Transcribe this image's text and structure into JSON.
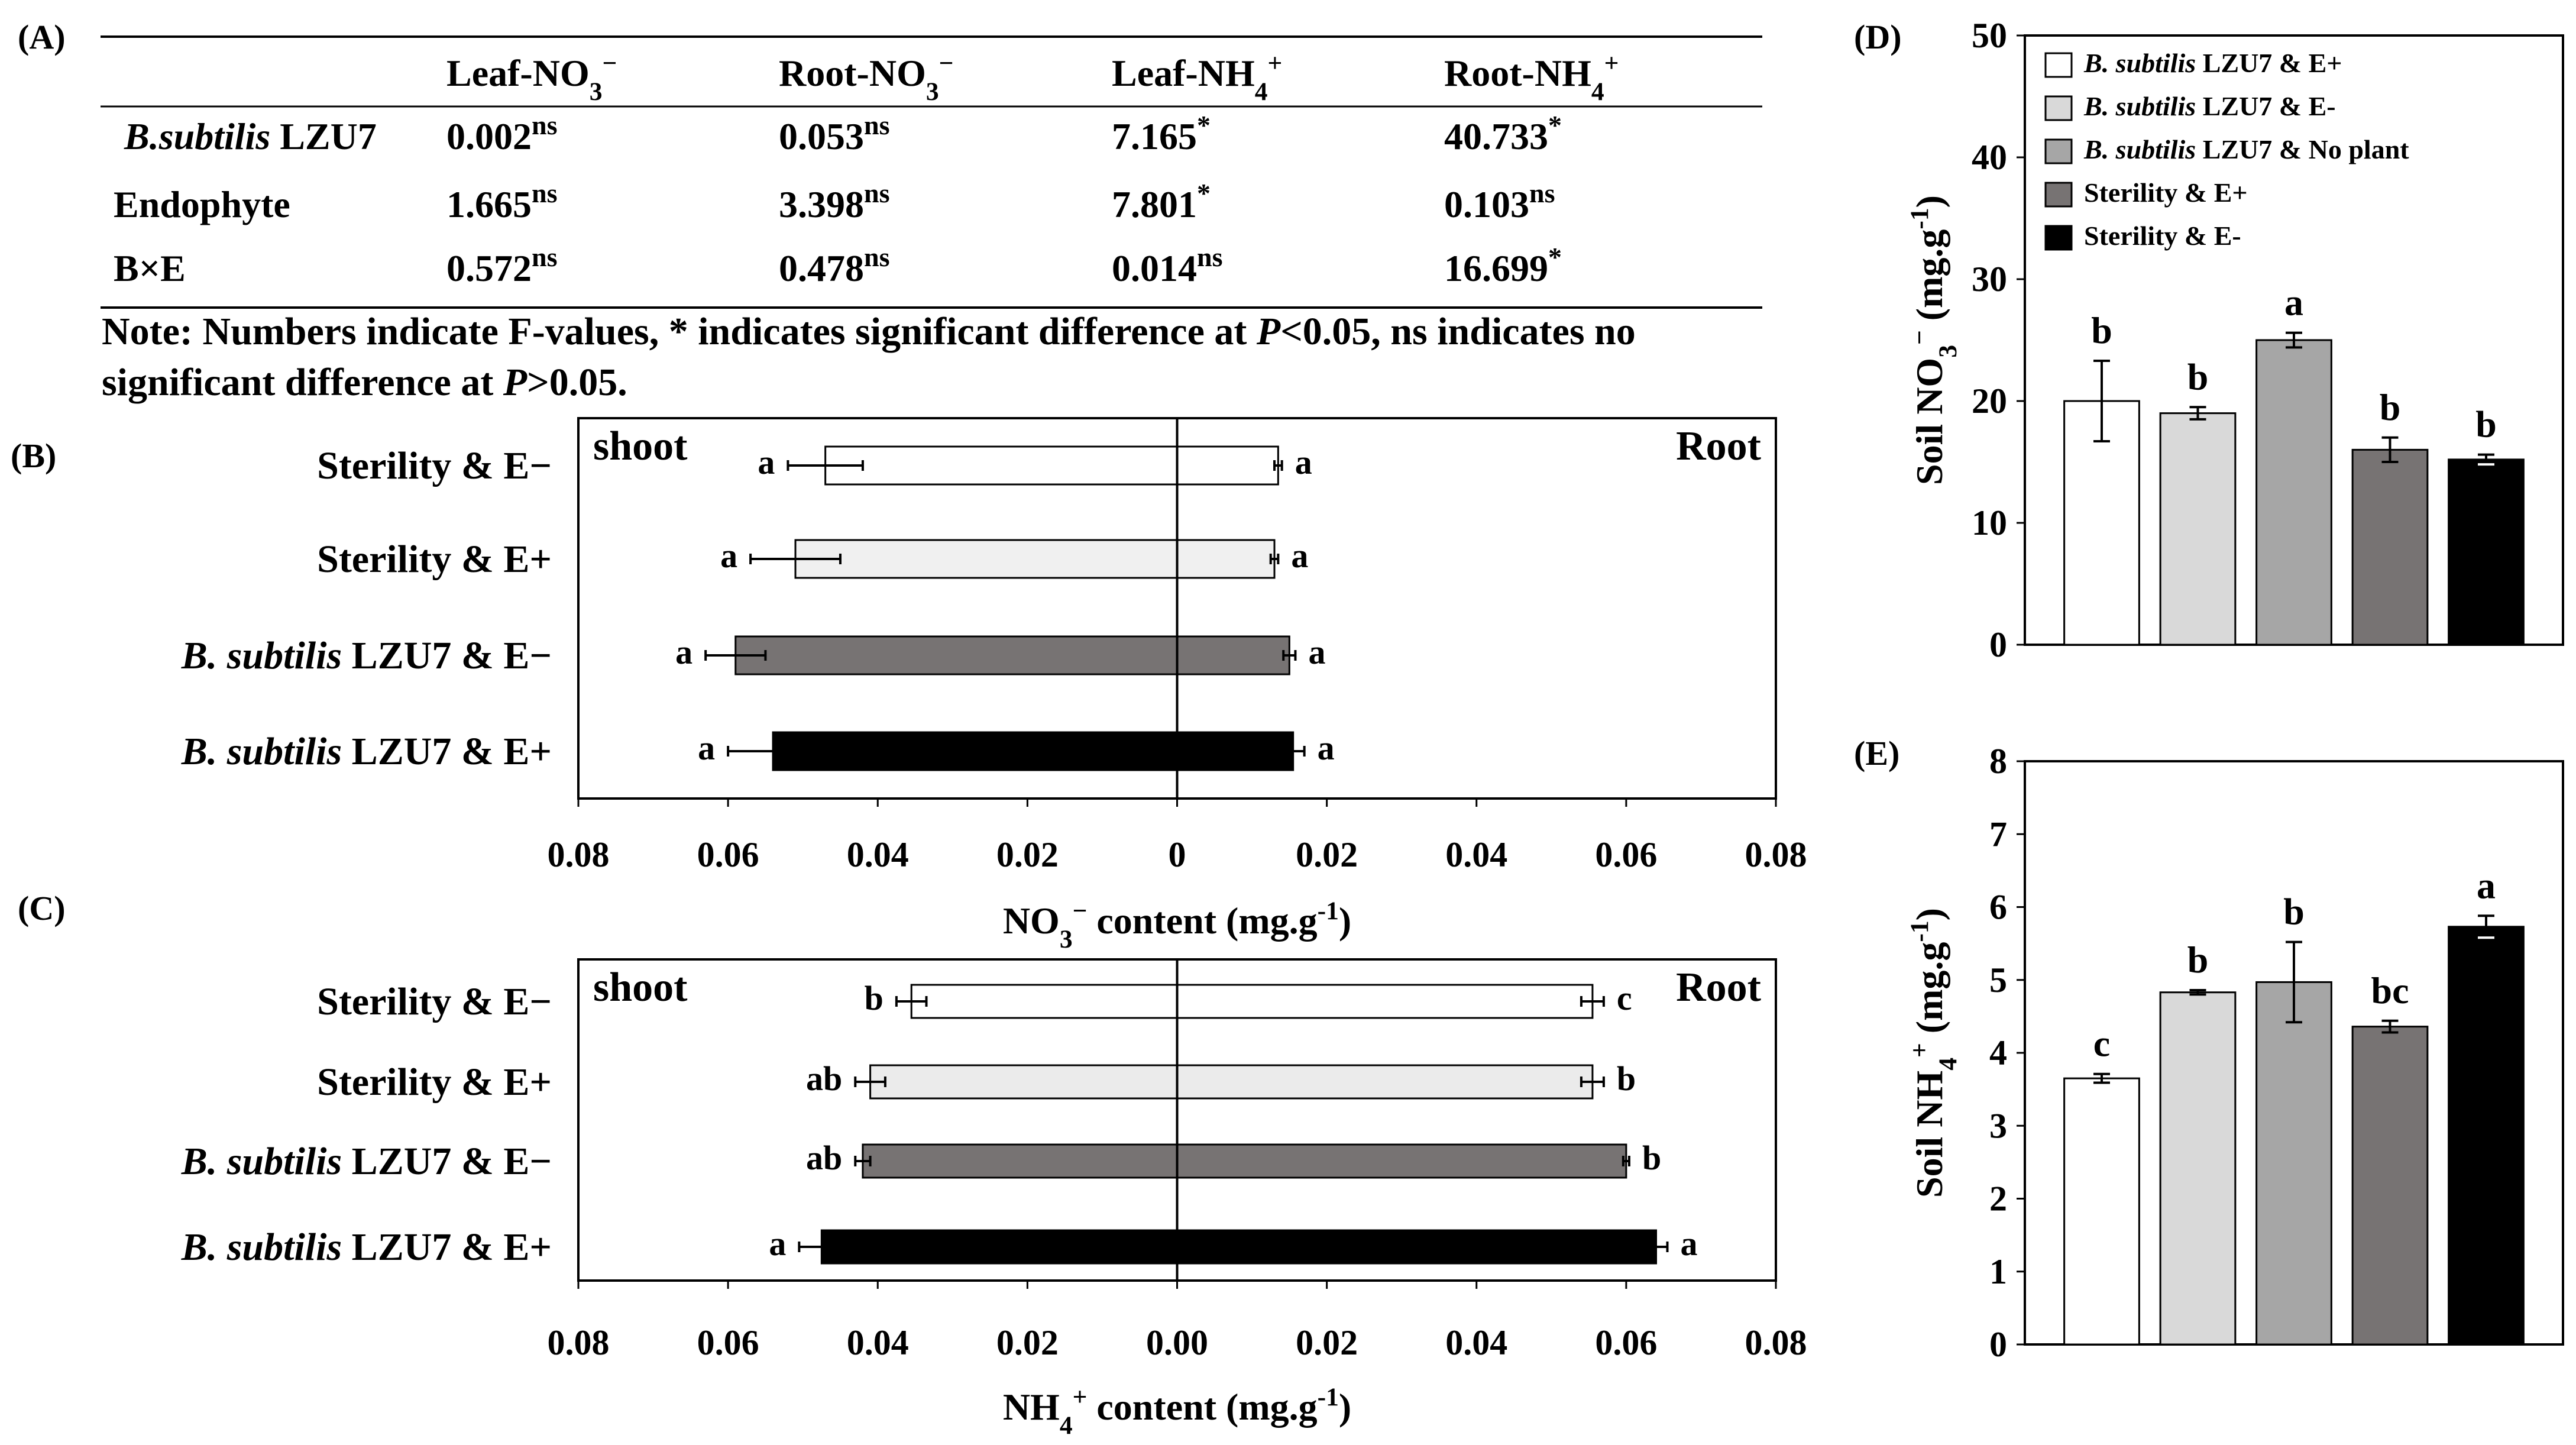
{
  "panel_labels": {
    "A": "(A)",
    "B": "(B)",
    "C": "(C)",
    "D": "(D)",
    "E": "(E)"
  },
  "anova_table": {
    "headers": [
      {
        "base": "Leaf-NO",
        "sub": "3",
        "sup": "−"
      },
      {
        "base": "Root-NO",
        "sub": "3",
        "sup": "−"
      },
      {
        "base": "Leaf-NH",
        "sub": "4",
        "sup": "+"
      },
      {
        "base": "Root-NH",
        "sub": "4",
        "sup": "+"
      }
    ],
    "rows": [
      {
        "label_italic": "B.subtilis",
        "label_rest": " LZU7",
        "cells": [
          {
            "v": "0.002",
            "s": "ns"
          },
          {
            "v": "0.053",
            "s": "ns"
          },
          {
            "v": "7.165",
            "s": "*"
          },
          {
            "v": "40.733",
            "s": "*"
          }
        ]
      },
      {
        "label_italic": "",
        "label_rest": "Endophyte",
        "cells": [
          {
            "v": "1.665",
            "s": "ns"
          },
          {
            "v": "3.398",
            "s": "ns"
          },
          {
            "v": "7.801",
            "s": "*"
          },
          {
            "v": "0.103",
            "s": "ns"
          }
        ]
      },
      {
        "label_italic": "",
        "label_rest": "B×E",
        "cells": [
          {
            "v": "0.572",
            "s": "ns"
          },
          {
            "v": "0.478",
            "s": "ns"
          },
          {
            "v": "0.014",
            "s": "ns"
          },
          {
            "v": "16.699",
            "s": "*"
          }
        ]
      }
    ],
    "note_line1": [
      "Note: Numbers indicate F-values, * indicates significant difference at ",
      "P",
      "<0.05, ns indicates no"
    ],
    "note_line2": [
      "significant difference at ",
      "P",
      ">0.05."
    ]
  },
  "chart_data": [
    {
      "id": "B",
      "type": "bar",
      "orientation": "horizontal-diverging",
      "left_label": "shoot",
      "right_label": "Root",
      "categories": [
        {
          "italic": "",
          "rest": "Sterility & E−"
        },
        {
          "italic": "",
          "rest": "Sterility & E+"
        },
        {
          "italic": "B. subtilis",
          "rest": " LZU7 & E−"
        },
        {
          "italic": "B. subtilis",
          "rest": " LZU7 & E+"
        }
      ],
      "colors": [
        "#ffffff",
        "#f0f0f0",
        "#777373",
        "#000000"
      ],
      "series": [
        {
          "name": "shoot",
          "values": [
            0.047,
            0.051,
            0.059,
            0.054
          ],
          "errors": [
            0.005,
            0.006,
            0.004,
            0.006
          ],
          "letters": [
            "a",
            "a",
            "a",
            "a"
          ]
        },
        {
          "name": "Root",
          "values": [
            0.0135,
            0.013,
            0.015,
            0.0155
          ],
          "errors": [
            0.0005,
            0.0005,
            0.0008,
            0.0015
          ],
          "letters": [
            "a",
            "a",
            "a",
            "a"
          ]
        }
      ],
      "xlim": [
        -0.08,
        0.08
      ],
      "tick_labels": [
        "0.08",
        "0.06",
        "0.04",
        "0.02",
        "0",
        "0.02",
        "0.04",
        "0.06",
        "0.08"
      ],
      "xlabel": {
        "pre": "NO",
        "sub": "3",
        "sup1": "−",
        "post": " content (mg.g",
        "sup2": "-1",
        "end": ")"
      }
    },
    {
      "id": "C",
      "type": "bar",
      "orientation": "horizontal-diverging",
      "left_label": "shoot",
      "right_label": "Root",
      "categories": [
        {
          "italic": "",
          "rest": "Sterility & E−"
        },
        {
          "italic": "",
          "rest": "Sterility & E+"
        },
        {
          "italic": "B. subtilis",
          "rest": " LZU7 & E−"
        },
        {
          "italic": "B. subtilis",
          "rest": " LZU7 & E+"
        }
      ],
      "colors": [
        "#ffffff",
        "#ebebeb",
        "#777373",
        "#000000"
      ],
      "series": [
        {
          "name": "shoot",
          "values": [
            0.0355,
            0.041,
            0.042,
            0.0475
          ],
          "errors": [
            0.002,
            0.002,
            0.001,
            0.003
          ],
          "letters": [
            "b",
            "ab",
            "ab",
            "a"
          ]
        },
        {
          "name": "Root",
          "values": [
            0.0555,
            0.0555,
            0.06,
            0.064
          ],
          "errors": [
            0.0015,
            0.0015,
            0.0004,
            0.0015
          ],
          "letters": [
            "c",
            "b",
            "b",
            "a"
          ]
        }
      ],
      "xlim": [
        -0.08,
        0.08
      ],
      "tick_labels": [
        "0.08",
        "0.06",
        "0.04",
        "0.02",
        "0.00",
        "0.02",
        "0.04",
        "0.06",
        "0.08"
      ],
      "xlabel": {
        "pre": "NH",
        "sub": "4",
        "sup1": "+",
        "post": " content (mg.g",
        "sup2": "-1",
        "end": ")"
      }
    },
    {
      "id": "D",
      "type": "bar",
      "categories": [
        "B. subtilis LZU7 & E+",
        "B. subtilis LZU7 & E-",
        "B. subtilis LZU7 & No plant",
        "Sterility & E+",
        "Sterility & E-"
      ],
      "values": [
        20.0,
        19.0,
        25.0,
        16.0,
        15.2
      ],
      "errors": [
        3.3,
        0.5,
        0.6,
        1.0,
        0.4
      ],
      "letters": [
        "b",
        "b",
        "a",
        "b",
        "b"
      ],
      "colors": [
        "#ffffff",
        "#d9d9d9",
        "#a6a6a6",
        "#777373",
        "#000000"
      ],
      "ylim": [
        0,
        50
      ],
      "yticks": [
        "0",
        "10",
        "20",
        "30",
        "40",
        "50"
      ],
      "ylabel": {
        "pre": "Soil NO",
        "sub": "3",
        "sup1": "−",
        "post": " (mg.g",
        "sup2": "-1",
        "end": ")"
      },
      "legend": {
        "position": "top-right",
        "entries": [
          {
            "italic": "B. subtilis",
            "rest": " LZU7 & E+"
          },
          {
            "italic": "B. subtilis",
            "rest": " LZU7 & E-"
          },
          {
            "italic": "B. subtilis",
            "rest": " LZU7 & No plant"
          },
          {
            "italic": "",
            "rest": "Sterility & E+"
          },
          {
            "italic": "",
            "rest": "Sterility & E-"
          }
        ]
      }
    },
    {
      "id": "E",
      "type": "bar",
      "categories": [
        "B. subtilis LZU7 & E+",
        "B. subtilis LZU7 & E-",
        "B. subtilis LZU7 & No plant",
        "Sterility & E+",
        "Sterility & E-"
      ],
      "values": [
        3.65,
        4.83,
        4.97,
        4.36,
        5.73
      ],
      "errors": [
        0.06,
        0.03,
        0.55,
        0.08,
        0.15
      ],
      "letters": [
        "c",
        "b",
        "b",
        "bc",
        "a"
      ],
      "colors": [
        "#ffffff",
        "#d9d9d9",
        "#a6a6a6",
        "#777373",
        "#000000"
      ],
      "ylim": [
        0,
        8
      ],
      "yticks": [
        "0",
        "1",
        "2",
        "3",
        "4",
        "5",
        "6",
        "7",
        "8"
      ],
      "ylabel": {
        "pre": "Soil NH",
        "sub": "4",
        "sup1": "+",
        "post": " (mg.g",
        "sup2": "-1",
        "end": ")"
      }
    }
  ]
}
